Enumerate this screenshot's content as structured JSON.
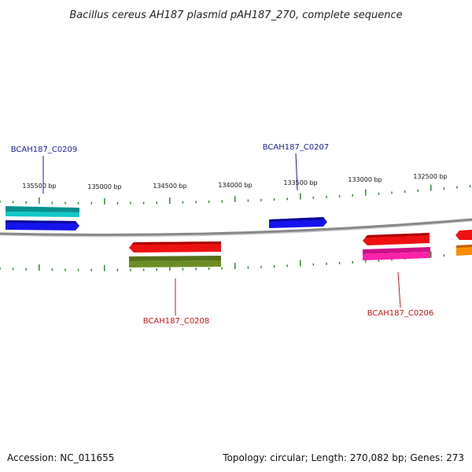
{
  "title": "Bacillus cereus AH187 plasmid pAH187_270, complete sequence",
  "footer": {
    "accession": "Accession: NC_011655",
    "summary": "Topology: circular; Length: 270,082 bp; Genes: 273"
  },
  "colors": {
    "backbone": "#888888",
    "ticks": "#2e8b2e",
    "label_forward": "#1a1aa0",
    "label_reverse": "#cc1111"
  },
  "scale_ticks": [
    {
      "label": "135500 bp"
    },
    {
      "label": "135000 bp"
    },
    {
      "label": "134500 bp"
    },
    {
      "label": "134000 bp"
    },
    {
      "label": "133500 bp"
    },
    {
      "label": "133000 bp"
    },
    {
      "label": "132500 bp"
    }
  ],
  "gene_labels": [
    {
      "text": "BCAH187_C0209",
      "strand": "forward"
    },
    {
      "text": "BCAH187_C0207",
      "strand": "forward"
    },
    {
      "text": "BCAH187_C0208",
      "strand": "reverse"
    },
    {
      "text": "BCAH187_C0206",
      "strand": "reverse"
    }
  ],
  "features": [
    {
      "color": "#12c8c8"
    },
    {
      "color": "#1414ee"
    },
    {
      "color": "#1414ee"
    },
    {
      "color": "#ee1111"
    },
    {
      "color": "#6b8e23"
    },
    {
      "color": "#ee1111"
    },
    {
      "color": "#ff22aa"
    },
    {
      "color": "#ee1111"
    },
    {
      "color": "#ff8c00"
    }
  ]
}
